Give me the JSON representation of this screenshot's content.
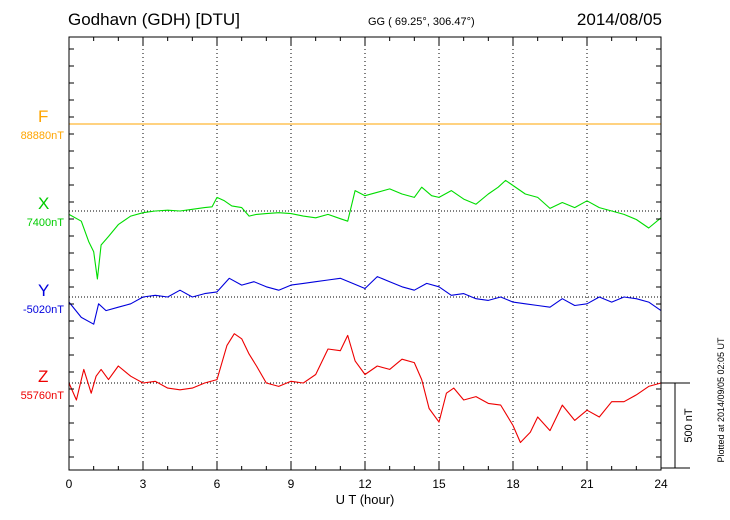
{
  "header": {
    "station": "Godhavn (GDH)  [DTU]",
    "coords": "GG ( 69.25°, 306.47°)",
    "date": "2014/08/05"
  },
  "footer": {
    "plotted": "Plotted at 2014/09/05 02:05 UT"
  },
  "scale_bar": {
    "label": "500 nT",
    "value_nT": 500
  },
  "colors": {
    "F": "#ffa500",
    "X": "#00dd00",
    "Y": "#0000dd",
    "Z": "#ee0000",
    "axes": "#000000"
  },
  "chart_data": {
    "type": "line",
    "xlabel": "U T (hour)",
    "xlim": [
      0,
      24
    ],
    "xticks": [
      0,
      3,
      6,
      9,
      12,
      15,
      18,
      21,
      24
    ],
    "xtick_labels": [
      "0",
      "3",
      "6",
      "9",
      "12",
      "15",
      "18",
      "21",
      "24"
    ],
    "grid": "dotted vertical every 3 h; dotted baseline per channel",
    "series": [
      {
        "name": "F",
        "baseline_label": "88880nT",
        "baseline_nT": 88880,
        "x": [
          0,
          24
        ],
        "values_nT": [
          0,
          0
        ]
      },
      {
        "name": "X",
        "baseline_label": "7400nT",
        "baseline_nT": 7400,
        "x": [
          0,
          0.5,
          0.8,
          1.0,
          1.15,
          1.3,
          1.6,
          2.0,
          2.5,
          3.0,
          3.5,
          4.0,
          4.5,
          5.0,
          5.5,
          5.8,
          6.0,
          6.3,
          6.6,
          7.0,
          7.3,
          7.6,
          8.0,
          8.5,
          9.0,
          9.5,
          10.0,
          10.5,
          11.0,
          11.3,
          11.6,
          12.0,
          12.5,
          13.0,
          13.5,
          14.0,
          14.3,
          14.7,
          15.0,
          15.5,
          16.0,
          16.5,
          17.0,
          17.4,
          17.7,
          18.0,
          18.5,
          19.0,
          19.5,
          20.0,
          20.5,
          21.0,
          21.5,
          22.0,
          22.5,
          23.0,
          23.5,
          24.0
        ],
        "values_nT": [
          -20,
          -60,
          -180,
          -240,
          -400,
          -200,
          -150,
          -80,
          -30,
          -10,
          0,
          5,
          0,
          10,
          20,
          25,
          80,
          60,
          30,
          20,
          -30,
          -20,
          -15,
          -10,
          -15,
          -30,
          -40,
          -20,
          -45,
          -60,
          120,
          90,
          110,
          130,
          100,
          80,
          140,
          90,
          80,
          120,
          70,
          40,
          100,
          140,
          180,
          150,
          100,
          80,
          15,
          50,
          20,
          60,
          20,
          0,
          -20,
          -50,
          -100,
          -40
        ]
      },
      {
        "name": "Y",
        "baseline_label": "-5020nT",
        "baseline_nT": -5020,
        "x": [
          0,
          0.5,
          1.0,
          1.2,
          1.5,
          2.0,
          2.5,
          3.0,
          3.5,
          4.0,
          4.5,
          5.0,
          5.5,
          6.0,
          6.5,
          7.0,
          7.5,
          8.0,
          8.5,
          9.0,
          9.5,
          10.0,
          10.5,
          11.0,
          11.5,
          12.0,
          12.5,
          13.0,
          13.5,
          14.0,
          14.5,
          15.0,
          15.5,
          16.0,
          16.5,
          17.0,
          17.5,
          18.0,
          18.5,
          19.0,
          19.5,
          20.0,
          20.5,
          21.0,
          21.5,
          22.0,
          22.5,
          23.0,
          23.5,
          24.0
        ],
        "values_nT": [
          -30,
          -120,
          -160,
          -40,
          -80,
          -60,
          -40,
          0,
          10,
          0,
          40,
          0,
          20,
          30,
          110,
          70,
          90,
          60,
          40,
          70,
          80,
          90,
          100,
          110,
          80,
          50,
          120,
          90,
          60,
          40,
          80,
          60,
          10,
          20,
          -10,
          -20,
          0,
          -30,
          -40,
          -50,
          -60,
          -10,
          -50,
          -40,
          0,
          -30,
          0,
          -10,
          -30,
          -80
        ]
      },
      {
        "name": "Z",
        "baseline_label": "55760nT",
        "baseline_nT": 55760,
        "x": [
          0,
          0.3,
          0.6,
          0.9,
          1.1,
          1.3,
          1.6,
          2.0,
          2.5,
          3.0,
          3.5,
          4.0,
          4.5,
          5.0,
          5.5,
          6.0,
          6.4,
          6.7,
          7.0,
          7.3,
          7.6,
          8.0,
          8.5,
          9.0,
          9.5,
          10.0,
          10.5,
          11.0,
          11.3,
          11.6,
          12.0,
          12.5,
          13.0,
          13.5,
          14.0,
          14.3,
          14.6,
          15.0,
          15.3,
          15.6,
          16.0,
          16.5,
          17.0,
          17.5,
          18.0,
          18.3,
          18.7,
          19.0,
          19.5,
          20.0,
          20.5,
          21.0,
          21.5,
          22.0,
          22.5,
          23.0,
          23.5,
          24.0
        ],
        "values_nT": [
          0,
          -100,
          80,
          -60,
          40,
          80,
          20,
          100,
          40,
          0,
          10,
          -30,
          -40,
          -30,
          0,
          20,
          220,
          290,
          260,
          170,
          100,
          0,
          -20,
          10,
          0,
          50,
          200,
          190,
          280,
          130,
          50,
          100,
          80,
          140,
          120,
          20,
          -150,
          -230,
          -60,
          -30,
          -100,
          -80,
          -120,
          -130,
          -250,
          -350,
          -290,
          -200,
          -280,
          -130,
          -220,
          -160,
          -200,
          -110,
          -110,
          -70,
          -20,
          0
        ]
      }
    ],
    "scale_bar_nT": 500
  }
}
